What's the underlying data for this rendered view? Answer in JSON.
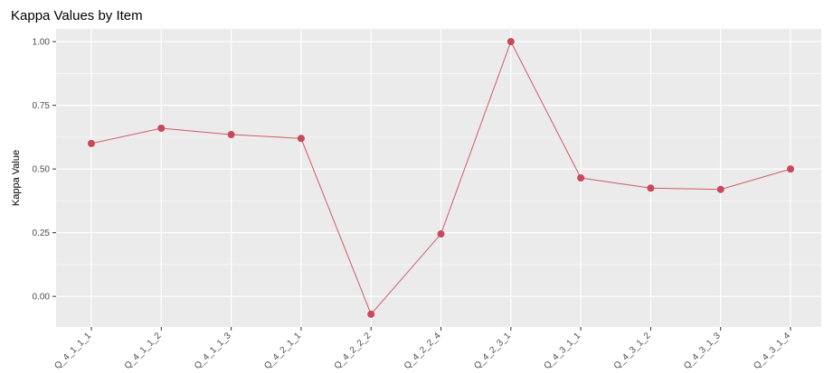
{
  "chart_data": {
    "type": "line",
    "title": "Kappa Values by Item",
    "xlabel": "",
    "ylabel": "Kappa Value",
    "categories": [
      "Q_4_1_1_1",
      "Q_4_1_1_2",
      "Q_4_1_1_3",
      "Q_4_2_1_1",
      "Q_4_2_2_2",
      "Q_4_2_2_4",
      "Q_4_2_3_1",
      "Q_4_3_1_1",
      "Q_4_3_1_2",
      "Q_4_3_1_3",
      "Q_4_3_1_4"
    ],
    "values": [
      0.6,
      0.66,
      0.635,
      0.62,
      -0.07,
      0.245,
      1.0,
      0.465,
      0.425,
      0.42,
      0.5
    ],
    "yticks": [
      0.0,
      0.25,
      0.5,
      0.75,
      1.0
    ],
    "ytick_labels": [
      "0.00",
      "0.25",
      "0.50",
      "0.75",
      "1.00"
    ],
    "ylim": [
      -0.12,
      1.05
    ],
    "grid": true,
    "legend": "none",
    "colors": {
      "line": "#cd5c6a",
      "point": "#c9485b",
      "panel": "#ebebeb",
      "grid": "#ffffff"
    }
  }
}
